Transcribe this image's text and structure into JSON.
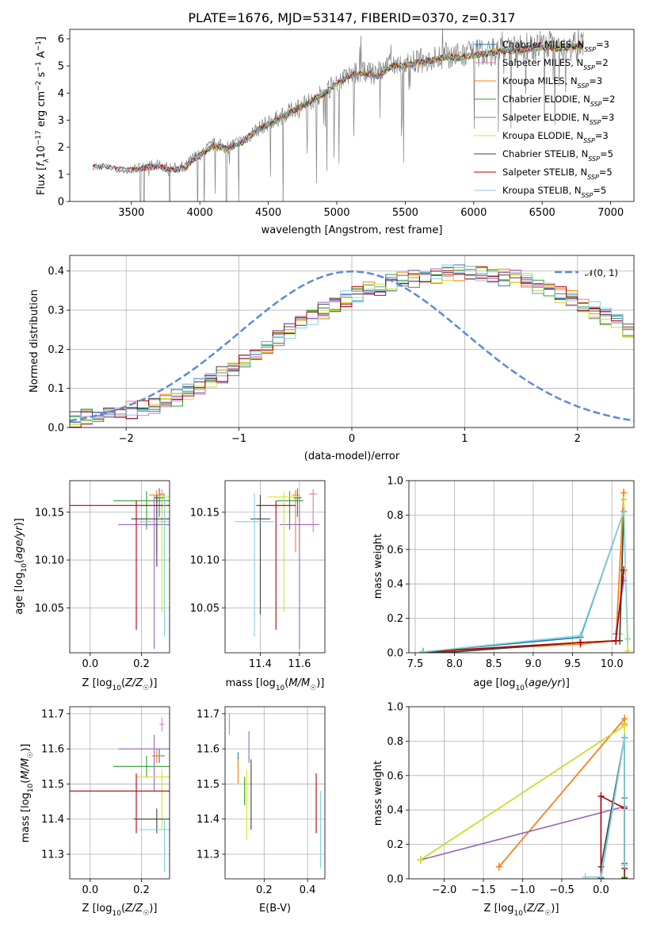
{
  "colors": {
    "Chabrier MILES": "#1f77b4",
    "Salpeter MILES": "#e377c2",
    "Kroupa MILES": "#ff7f0e",
    "Chabrier ELODIE": "#2ca02c",
    "Salpeter ELODIE": "#9467bd",
    "Kroupa ELODIE": "#d9e021",
    "Chabrier STELIB": "#404040",
    "Salpeter STELIB": "#b00000",
    "Kroupa STELIB": "#7fd3e0",
    "gauss": "#5b8bd9",
    "data": "#808080"
  },
  "chart_data": [
    {
      "type": "line",
      "title": "PLATE=1676, MJD=53147, FIBERID=0370, z=0.317",
      "xlabel": "wavelength [Angstrom, rest frame]",
      "ylabel": "Flux [f_λ 10^-17 erg cm^-2 s^-1 A^-1]",
      "xlim": [
        3050,
        7170
      ],
      "ylim": [
        0,
        6.35
      ],
      "xticks": [
        "3500",
        "4000",
        "4500",
        "5000",
        "5500",
        "6000",
        "6500",
        "7000"
      ],
      "yticks": [
        "0",
        "1",
        "2",
        "3",
        "4",
        "5",
        "6"
      ],
      "legend_position": "top-right",
      "legend": [
        {
          "name": "Chabrier MILES",
          "nssp": "3"
        },
        {
          "name": "Salpeter MILES",
          "nssp": "2"
        },
        {
          "name": "Kroupa MILES",
          "nssp": "3"
        },
        {
          "name": "Chabrier ELODIE",
          "nssp": "2"
        },
        {
          "name": "Salpeter ELODIE",
          "nssp": "3"
        },
        {
          "name": "Kroupa ELODIE",
          "nssp": "3"
        },
        {
          "name": "Chabrier STELIB",
          "nssp": "5"
        },
        {
          "name": "Salpeter STELIB",
          "nssp": "5"
        },
        {
          "name": "Kroupa STELIB",
          "nssp": "5"
        }
      ],
      "continuum": [
        [
          3220,
          1.3
        ],
        [
          3300,
          1.35
        ],
        [
          3400,
          1.25
        ],
        [
          3500,
          1.2
        ],
        [
          3600,
          1.3
        ],
        [
          3700,
          1.35
        ],
        [
          3800,
          1.2
        ],
        [
          3900,
          1.3
        ],
        [
          3950,
          1.6
        ],
        [
          4000,
          1.75
        ],
        [
          4100,
          2.1
        ],
        [
          4200,
          2.0
        ],
        [
          4300,
          2.2
        ],
        [
          4400,
          2.6
        ],
        [
          4500,
          2.9
        ],
        [
          4600,
          3.15
        ],
        [
          4700,
          3.45
        ],
        [
          4800,
          3.7
        ],
        [
          4900,
          4.0
        ],
        [
          5000,
          4.4
        ],
        [
          5100,
          4.7
        ],
        [
          5200,
          4.8
        ],
        [
          5300,
          4.65
        ],
        [
          5400,
          5.05
        ],
        [
          5500,
          5.05
        ],
        [
          5600,
          5.2
        ],
        [
          5700,
          5.25
        ],
        [
          5800,
          5.4
        ],
        [
          5900,
          5.35
        ],
        [
          6000,
          5.45
        ],
        [
          6100,
          5.5
        ],
        [
          6200,
          5.6
        ],
        [
          6300,
          5.6
        ],
        [
          6400,
          5.7
        ],
        [
          6500,
          5.75
        ],
        [
          6600,
          5.7
        ],
        [
          6700,
          5.75
        ],
        [
          6800,
          5.8
        ]
      ]
    },
    {
      "type": "line",
      "xlabel": "(data-model)/error",
      "ylabel": "Normed distribution",
      "xlim": [
        -2.5,
        2.5
      ],
      "ylim": [
        0,
        0.44
      ],
      "xticks": [
        "−2",
        "−1",
        "0",
        "1",
        "2"
      ],
      "yticks": [
        "0.0",
        "0.1",
        "0.2",
        "0.3",
        "0.4"
      ],
      "legend_position": "top-right",
      "gauss_label": "𝒩(0, 1)",
      "bin_width": 0.1,
      "hist_base": [
        0.02,
        0.025,
        0.03,
        0.035,
        0.04,
        0.045,
        0.05,
        0.055,
        0.065,
        0.075,
        0.09,
        0.105,
        0.12,
        0.135,
        0.155,
        0.17,
        0.19,
        0.21,
        0.23,
        0.25,
        0.265,
        0.285,
        0.3,
        0.315,
        0.33,
        0.34,
        0.35,
        0.36,
        0.37,
        0.375,
        0.38,
        0.385,
        0.39,
        0.395,
        0.395,
        0.395,
        0.395,
        0.39,
        0.385,
        0.38,
        0.375,
        0.365,
        0.355,
        0.34,
        0.33,
        0.315,
        0.3,
        0.285,
        0.27,
        0.25,
        0.235,
        0.215,
        0.2,
        0.18,
        0.165,
        0.145,
        0.13,
        0.115,
        0.1,
        0.085,
        0.075,
        0.065,
        0.055,
        0.045,
        0.04,
        0.035,
        0.03,
        0.025,
        0.02,
        0.02
      ]
    },
    {
      "type": "scatter",
      "xlabel": "Z [log10(Z/Z☉)]",
      "ylabel": "age [log10(age/yr)]",
      "xlim": [
        -0.08,
        0.31
      ],
      "ylim": [
        10.003,
        10.183
      ],
      "xticks": [
        "0.0",
        "0.2"
      ],
      "yticks": [
        "10.05",
        "10.10",
        "10.15"
      ],
      "points": [
        {
          "model": "Chabrier MILES",
          "x": 0.27,
          "y": 10.165,
          "xerr": 0.02,
          "yerr": [
            0.02,
            0.01
          ]
        },
        {
          "model": "Salpeter MILES",
          "x": 0.28,
          "y": 10.169,
          "xerr": 0.01,
          "yerr": [
            0.02,
            0.005
          ]
        },
        {
          "model": "Kroupa MILES",
          "x": 0.26,
          "y": 10.168,
          "xerr": 0.03,
          "yerr": [
            0.06,
            0.005
          ]
        },
        {
          "model": "Chabrier ELODIE",
          "x": 0.22,
          "y": 10.162,
          "xerr": 0.13,
          "yerr": [
            0.03,
            0.01
          ]
        },
        {
          "model": "Salpeter ELODIE",
          "x": 0.25,
          "y": 10.137,
          "xerr": 0.14,
          "yerr": [
            0.13,
            0.03
          ]
        },
        {
          "model": "Kroupa ELODIE",
          "x": 0.28,
          "y": 10.166,
          "xerr": 0.03,
          "yerr": [
            0.12,
            0.005
          ]
        },
        {
          "model": "Chabrier STELIB",
          "x": 0.26,
          "y": 10.143,
          "xerr": 0.1,
          "yerr": [
            0.05,
            0.025
          ]
        },
        {
          "model": "Salpeter STELIB",
          "x": 0.18,
          "y": 10.157,
          "xerr": 0.27,
          "yerr": [
            0.13,
            0.005
          ]
        },
        {
          "model": "Kroupa STELIB",
          "x": 0.29,
          "y": 10.14,
          "xerr": 0.1,
          "yerr": [
            0.12,
            0.03
          ]
        }
      ]
    },
    {
      "type": "scatter",
      "xlabel": "mass [log10(M/M☉)]",
      "ylabel": "",
      "xlim": [
        11.22,
        11.73
      ],
      "ylim": [
        10.003,
        10.183
      ],
      "xticks": [
        "11.4",
        "11.6"
      ],
      "yticks": [
        "10.05",
        "10.10",
        "10.15"
      ],
      "points": [
        {
          "model": "Chabrier MILES",
          "x": 11.59,
          "y": 10.165,
          "xerr": 0.02,
          "yerr": [
            0.02,
            0.01
          ]
        },
        {
          "model": "Salpeter MILES",
          "x": 11.67,
          "y": 10.169,
          "xerr": 0.02,
          "yerr": [
            0.04,
            0.005
          ]
        },
        {
          "model": "Kroupa MILES",
          "x": 11.58,
          "y": 10.168,
          "xerr": 0.02,
          "yerr": [
            0.06,
            0.005
          ]
        },
        {
          "model": "Chabrier ELODIE",
          "x": 11.55,
          "y": 10.162,
          "xerr": 0.07,
          "yerr": [
            0.03,
            0.01
          ]
        },
        {
          "model": "Salpeter ELODIE",
          "x": 11.6,
          "y": 10.137,
          "xerr": 0.1,
          "yerr": [
            0.13,
            0.03
          ]
        },
        {
          "model": "Kroupa ELODIE",
          "x": 11.52,
          "y": 10.166,
          "xerr": 0.08,
          "yerr": [
            0.12,
            0.005
          ]
        },
        {
          "model": "Chabrier STELIB",
          "x": 11.4,
          "y": 10.143,
          "xerr": 0.05,
          "yerr": [
            0.1,
            0.025
          ]
        },
        {
          "model": "Salpeter STELIB",
          "x": 11.48,
          "y": 10.157,
          "xerr": 0.1,
          "yerr": [
            0.13,
            0.005
          ]
        },
        {
          "model": "Kroupa STELIB",
          "x": 11.37,
          "y": 10.14,
          "xerr": 0.1,
          "yerr": [
            0.12,
            0.03
          ]
        }
      ]
    },
    {
      "type": "line",
      "xlabel": "age [log10(age/yr)]",
      "ylabel": "mass weight",
      "xlim": [
        7.42,
        10.28
      ],
      "ylim": [
        0,
        1.0
      ],
      "xticks": [
        "7.5",
        "8.0",
        "8.5",
        "9.0",
        "9.5",
        "10.0"
      ],
      "yticks": [
        "0.0",
        "0.2",
        "0.4",
        "0.6",
        "0.8",
        "1.0"
      ],
      "series": [
        {
          "model": "Chabrier MILES",
          "x": [
            7.6,
            9.6,
            10.15
          ],
          "y": [
            0.005,
            0.09,
            0.82
          ]
        },
        {
          "model": "Salpeter MILES",
          "x": [
            10.05,
            10.15
          ],
          "y": [
            0.07,
            0.93
          ]
        },
        {
          "model": "Kroupa MILES",
          "x": [
            7.6,
            9.6,
            10.05,
            10.15
          ],
          "y": [
            0.005,
            0.05,
            0.07,
            0.93
          ]
        },
        {
          "model": "Chabrier ELODIE",
          "x": [
            10.1,
            10.15
          ],
          "y": [
            0.11,
            0.89
          ]
        },
        {
          "model": "Salpeter ELODIE",
          "x": [
            10.05,
            10.15
          ],
          "y": [
            0.11,
            0.42
          ]
        },
        {
          "model": "Kroupa ELODIE",
          "x": [
            10.1,
            10.15,
            10.2
          ],
          "y": [
            0.11,
            0.89,
            0.01
          ]
        },
        {
          "model": "Chabrier STELIB",
          "x": [
            7.6,
            8.0,
            9.6,
            10.1,
            10.15
          ],
          "y": [
            0.005,
            0.005,
            0.06,
            0.07,
            0.82
          ]
        },
        {
          "model": "Salpeter STELIB",
          "x": [
            7.6,
            9.6,
            10.05,
            10.15
          ],
          "y": [
            0.005,
            0.06,
            0.07,
            0.48
          ]
        },
        {
          "model": "Kroupa STELIB",
          "x": [
            7.6,
            9.6,
            10.15,
            10.2
          ],
          "y": [
            0.005,
            0.1,
            0.82,
            0.08
          ]
        }
      ]
    },
    {
      "type": "scatter",
      "xlabel": "Z [log10(Z/Z☉)]",
      "ylabel": "mass [log10(M/M☉)]",
      "xlim": [
        -0.08,
        0.31
      ],
      "ylim": [
        11.23,
        11.72
      ],
      "xticks": [
        "0.0",
        "0.2"
      ],
      "yticks": [
        "11.3",
        "11.4",
        "11.5",
        "11.6",
        "11.7"
      ],
      "points": [
        {
          "model": "Chabrier MILES",
          "x": 0.27,
          "y": 11.58,
          "xerr": 0.02,
          "yerr": [
            0.02,
            0.02
          ]
        },
        {
          "model": "Salpeter MILES",
          "x": 0.28,
          "y": 11.67,
          "xerr": 0.01,
          "yerr": [
            0.02,
            0.02
          ]
        },
        {
          "model": "Kroupa MILES",
          "x": 0.26,
          "y": 11.58,
          "xerr": 0.02,
          "yerr": [
            0.02,
            0.02
          ]
        },
        {
          "model": "Chabrier ELODIE",
          "x": 0.22,
          "y": 11.55,
          "xerr": 0.13,
          "yerr": [
            0.03,
            0.03
          ]
        },
        {
          "model": "Salpeter ELODIE",
          "x": 0.25,
          "y": 11.6,
          "xerr": 0.14,
          "yerr": [
            0.12,
            0.04
          ]
        },
        {
          "model": "Kroupa ELODIE",
          "x": 0.28,
          "y": 11.52,
          "xerr": 0.1,
          "yerr": [
            0.15,
            0.02
          ]
        },
        {
          "model": "Chabrier STELIB",
          "x": 0.26,
          "y": 11.4,
          "xerr": 0.09,
          "yerr": [
            0.04,
            0.03
          ]
        },
        {
          "model": "Salpeter STELIB",
          "x": 0.18,
          "y": 11.48,
          "xerr": 0.27,
          "yerr": [
            0.12,
            0.05
          ]
        },
        {
          "model": "Kroupa STELIB",
          "x": 0.29,
          "y": 11.37,
          "xerr": 0.1,
          "yerr": [
            0.12,
            0.03
          ]
        }
      ]
    },
    {
      "type": "scatter",
      "xlabel": "E(B-V)",
      "ylabel": "",
      "xlim": [
        0.02,
        0.48
      ],
      "ylim": [
        11.23,
        11.72
      ],
      "xticks": [
        "0.2",
        "0.4"
      ],
      "yticks": [
        "11.3",
        "11.4",
        "11.5",
        "11.6",
        "11.7"
      ],
      "points": [
        {
          "model": "Chabrier MILES",
          "x": 0.08,
          "y": 11.57,
          "yerr": [
            0.02,
            0.02
          ]
        },
        {
          "model": "Salpeter MILES",
          "x": 0.04,
          "y": 11.67,
          "yerr": [
            0.03,
            0.03
          ]
        },
        {
          "model": "Kroupa MILES",
          "x": 0.08,
          "y": 11.55,
          "yerr": [
            0.05,
            0.02
          ]
        },
        {
          "model": "Chabrier ELODIE",
          "x": 0.11,
          "y": 11.5,
          "yerr": [
            0.06,
            0.02
          ]
        },
        {
          "model": "Salpeter ELODIE",
          "x": 0.13,
          "y": 11.6,
          "yerr": [
            0.04,
            0.05
          ]
        },
        {
          "model": "Kroupa ELODIE",
          "x": 0.12,
          "y": 11.52,
          "yerr": [
            0.18,
            0.02
          ]
        },
        {
          "model": "Chabrier STELIB",
          "x": 0.14,
          "y": 11.47,
          "yerr": [
            0.1,
            0.1
          ]
        },
        {
          "model": "Salpeter STELIB",
          "x": 0.44,
          "y": 11.45,
          "yerr": [
            0.09,
            0.08
          ]
        },
        {
          "model": "Kroupa STELIB",
          "x": 0.46,
          "y": 11.38,
          "yerr": [
            0.12,
            0.1
          ]
        }
      ]
    },
    {
      "type": "line",
      "xlabel": "Z [log10(Z/Z☉)]",
      "ylabel": "mass weight",
      "xlim": [
        -2.45,
        0.42
      ],
      "ylim": [
        0,
        1.0
      ],
      "xticks": [
        "−2.0",
        "−1.5",
        "−1.0",
        "−0.5",
        "0.0"
      ],
      "yticks": [
        "0.0",
        "0.2",
        "0.4",
        "0.6",
        "0.8",
        "1.0"
      ],
      "series": [
        {
          "model": "Chabrier MILES",
          "x": [
            0.0,
            0.3,
            0.3
          ],
          "y": [
            0.005,
            0.82,
            0.09
          ]
        },
        {
          "model": "Salpeter MILES",
          "x": [
            -1.3,
            0.3
          ],
          "y": [
            0.07,
            0.93
          ]
        },
        {
          "model": "Kroupa MILES",
          "x": [
            -1.3,
            0.3,
            0.3
          ],
          "y": [
            0.07,
            0.93,
            0.9
          ]
        },
        {
          "model": "Chabrier ELODIE",
          "x": [
            -2.3,
            0.3
          ],
          "y": [
            0.11,
            0.89
          ]
        },
        {
          "model": "Salpeter ELODIE",
          "x": [
            -2.3,
            0.3,
            0.3
          ],
          "y": [
            0.11,
            0.42,
            0.47
          ]
        },
        {
          "model": "Kroupa ELODIE",
          "x": [
            -2.3,
            0.3,
            0.3
          ],
          "y": [
            0.11,
            0.89,
            0.01
          ]
        },
        {
          "model": "Chabrier STELIB",
          "x": [
            0.0,
            0.3,
            0.3
          ],
          "y": [
            0.07,
            0.82,
            0.005
          ]
        },
        {
          "model": "Salpeter STELIB",
          "x": [
            0.0,
            0.0,
            0.3,
            0.3
          ],
          "y": [
            0.0,
            0.48,
            0.41,
            0.06
          ]
        },
        {
          "model": "Kroupa STELIB",
          "x": [
            -0.2,
            0.0,
            0.3,
            0.3
          ],
          "y": [
            0.01,
            0.01,
            0.82,
            0.08
          ]
        }
      ]
    }
  ]
}
